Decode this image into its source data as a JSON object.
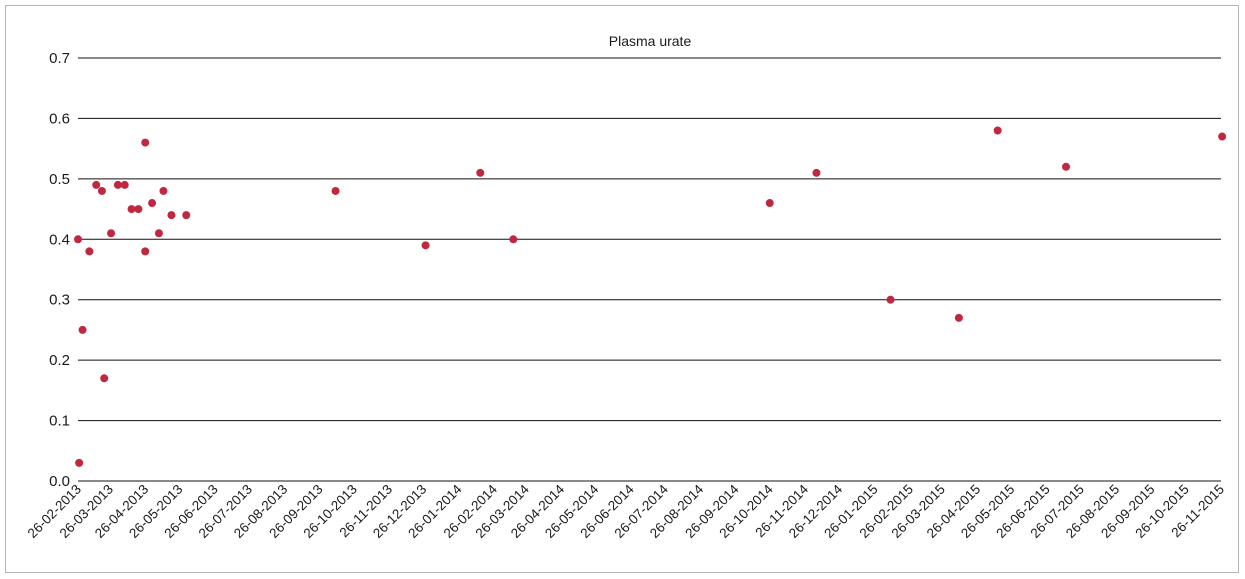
{
  "chart_data": {
    "type": "scatter",
    "title": "Plasma urate",
    "xlabel": "",
    "ylabel": "",
    "ylim": [
      0,
      0.7
    ],
    "yticks": [
      "0.0",
      "0.1",
      "0.2",
      "0.3",
      "0.4",
      "0.5",
      "0.6",
      "0.7"
    ],
    "xlim": [
      "2013-02-26",
      "2015-11-26"
    ],
    "xticks": [
      "26-02-2013",
      "26-03-2013",
      "26-04-2013",
      "26-05-2013",
      "26-06-2013",
      "26-07-2013",
      "26-08-2013",
      "26-09-2013",
      "26-10-2013",
      "26-11-2013",
      "26-12-2013",
      "26-01-2014",
      "26-02-2014",
      "26-03-2014",
      "26-04-2014",
      "26-05-2014",
      "26-06-2014",
      "26-07-2014",
      "26-08-2014",
      "26-09-2014",
      "26-10-2014",
      "26-11-2014",
      "26-12-2014",
      "26-01-2015",
      "26-02-2015",
      "26-03-2015",
      "26-04-2015",
      "26-05-2015",
      "26-06-2015",
      "26-07-2015",
      "26-08-2015",
      "26-09-2015",
      "26-10-2015",
      "26-11-2015"
    ],
    "grid": "horizontal",
    "marker_color": "#c1273f",
    "series": [
      {
        "points": [
          {
            "x": "2013-02-26",
            "y": 0.4
          },
          {
            "x": "2013-02-27",
            "y": 0.03
          },
          {
            "x": "2013-03-02",
            "y": 0.25
          },
          {
            "x": "2013-03-08",
            "y": 0.38
          },
          {
            "x": "2013-03-14",
            "y": 0.49
          },
          {
            "x": "2013-03-19",
            "y": 0.48
          },
          {
            "x": "2013-03-21",
            "y": 0.17
          },
          {
            "x": "2013-03-27",
            "y": 0.41
          },
          {
            "x": "2013-04-02",
            "y": 0.49
          },
          {
            "x": "2013-04-08",
            "y": 0.49
          },
          {
            "x": "2013-04-14",
            "y": 0.45
          },
          {
            "x": "2013-04-20",
            "y": 0.45
          },
          {
            "x": "2013-04-26",
            "y": 0.56
          },
          {
            "x": "2013-04-26",
            "y": 0.38
          },
          {
            "x": "2013-05-02",
            "y": 0.46
          },
          {
            "x": "2013-05-08",
            "y": 0.41
          },
          {
            "x": "2013-05-12",
            "y": 0.48
          },
          {
            "x": "2013-05-19",
            "y": 0.44
          },
          {
            "x": "2013-06-01",
            "y": 0.44
          },
          {
            "x": "2013-10-10",
            "y": 0.48
          },
          {
            "x": "2013-12-28",
            "y": 0.39
          },
          {
            "x": "2014-02-14",
            "y": 0.51
          },
          {
            "x": "2014-03-15",
            "y": 0.4
          },
          {
            "x": "2014-10-26",
            "y": 0.46
          },
          {
            "x": "2014-12-06",
            "y": 0.51
          },
          {
            "x": "2015-02-09",
            "y": 0.3
          },
          {
            "x": "2015-04-10",
            "y": 0.27
          },
          {
            "x": "2015-05-14",
            "y": 0.58
          },
          {
            "x": "2015-07-13",
            "y": 0.52
          },
          {
            "x": "2015-11-27",
            "y": 0.57
          }
        ]
      }
    ]
  }
}
